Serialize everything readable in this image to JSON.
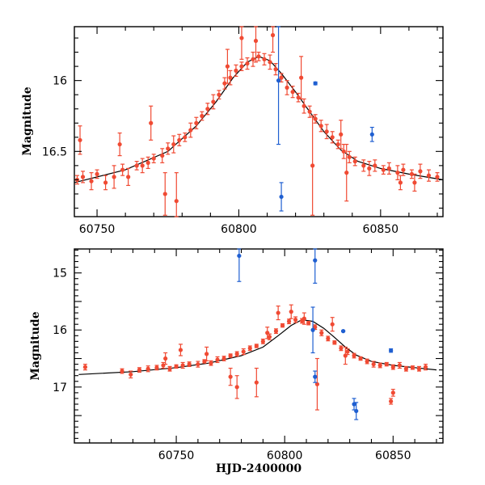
{
  "colors": {
    "red": "#f04a33",
    "blue": "#1f5fd1",
    "model": "#000000"
  },
  "chart_data": [
    {
      "type": "scatter",
      "ylabel": "Magnitude",
      "xlabel": "",
      "xlim": [
        60742,
        60872
      ],
      "ylim": [
        16.96,
        15.62
      ],
      "y_inverted": true,
      "xticks": [
        60750,
        60800,
        60850
      ],
      "xtick_labels": [
        "60750",
        "60800",
        "60850"
      ],
      "yticks": [
        16.0,
        16.5
      ],
      "ytick_labels": [
        "16",
        "16.5"
      ],
      "model_curve": {
        "x": [
          60742,
          60760,
          60775,
          60785,
          60792,
          60798,
          60803,
          60807,
          60811,
          60815,
          60820,
          60825,
          60830,
          60836,
          60842,
          60850,
          60860,
          60872
        ],
        "y": [
          16.72,
          16.63,
          16.5,
          16.32,
          16.15,
          15.98,
          15.87,
          15.83,
          15.86,
          15.95,
          16.08,
          16.22,
          16.36,
          16.49,
          16.57,
          16.62,
          16.66,
          16.7
        ]
      },
      "series": [
        {
          "color": "red",
          "points": [
            [
              60743,
              16.7,
              0.03
            ],
            [
              60745,
              16.68,
              0.04
            ],
            [
              60748,
              16.71,
              0.06
            ],
            [
              60750,
              16.66,
              0.03
            ],
            [
              60753,
              16.72,
              0.05
            ],
            [
              60756,
              16.68,
              0.08
            ],
            [
              60759,
              16.63,
              0.04
            ],
            [
              60761,
              16.68,
              0.06
            ],
            [
              60764,
              16.6,
              0.03
            ],
            [
              60766,
              16.6,
              0.05
            ],
            [
              60768,
              16.58,
              0.04
            ],
            [
              60770,
              16.55,
              0.03
            ],
            [
              60773,
              16.53,
              0.05
            ],
            [
              60775,
              16.48,
              0.04
            ],
            [
              60777,
              16.45,
              0.06
            ],
            [
              60779,
              16.42,
              0.04
            ],
            [
              60781,
              16.4,
              0.03
            ],
            [
              60783,
              16.35,
              0.05
            ],
            [
              60785,
              16.3,
              0.04
            ],
            [
              60787,
              16.25,
              0.03
            ],
            [
              60789,
              16.2,
              0.04
            ],
            [
              60791,
              16.15,
              0.05
            ],
            [
              60793,
              16.1,
              0.03
            ],
            [
              60795,
              16.02,
              0.04
            ],
            [
              60797,
              15.98,
              0.05
            ],
            [
              60799,
              15.93,
              0.04
            ],
            [
              60801,
              15.9,
              0.03
            ],
            [
              60803,
              15.88,
              0.04
            ],
            [
              60805,
              15.85,
              0.05
            ],
            [
              60807,
              15.83,
              0.03
            ],
            [
              60809,
              15.85,
              0.04
            ],
            [
              60811,
              15.87,
              0.05
            ],
            [
              60813,
              15.92,
              0.04
            ],
            [
              60815,
              15.98,
              0.03
            ],
            [
              60817,
              16.05,
              0.05
            ],
            [
              60819,
              16.08,
              0.04
            ],
            [
              60821,
              16.12,
              0.03
            ],
            [
              60823,
              16.18,
              0.05
            ],
            [
              60825,
              16.22,
              0.04
            ],
            [
              60827,
              16.27,
              0.03
            ],
            [
              60829,
              16.32,
              0.04
            ],
            [
              60831,
              16.36,
              0.05
            ],
            [
              60833,
              16.4,
              0.04
            ],
            [
              60835,
              16.45,
              0.03
            ],
            [
              60837,
              16.5,
              0.05
            ],
            [
              60839,
              16.54,
              0.04
            ],
            [
              60841,
              16.57,
              0.03
            ],
            [
              60844,
              16.6,
              0.04
            ],
            [
              60846,
              16.62,
              0.05
            ],
            [
              60848,
              16.6,
              0.04
            ],
            [
              60851,
              16.63,
              0.03
            ],
            [
              60853,
              16.62,
              0.04
            ],
            [
              60856,
              16.65,
              0.05
            ],
            [
              60858,
              16.63,
              0.04
            ],
            [
              60861,
              16.66,
              0.03
            ],
            [
              60864,
              16.64,
              0.05
            ],
            [
              60867,
              16.67,
              0.04
            ],
            [
              60870,
              16.68,
              0.03
            ],
            [
              60744,
              16.42,
              0.1
            ],
            [
              60758,
              16.45,
              0.08
            ],
            [
              60769,
              16.3,
              0.12
            ],
            [
              60774,
              16.8,
              0.15
            ],
            [
              60778,
              16.85,
              0.2
            ],
            [
              60796,
              15.9,
              0.12
            ],
            [
              60801,
              15.7,
              0.15
            ],
            [
              60806,
              15.72,
              0.15
            ],
            [
              60812,
              15.68,
              0.12
            ],
            [
              60822,
              15.98,
              0.15
            ],
            [
              60826,
              16.6,
              0.35
            ],
            [
              60836,
              16.38,
              0.1
            ],
            [
              60838,
              16.65,
              0.2
            ],
            [
              60857,
              16.72,
              0.05
            ],
            [
              60862,
              16.72,
              0.06
            ]
          ]
        },
        {
          "color": "blue",
          "points": [
            [
              60814,
              16.0,
              0.45
            ],
            [
              60815,
              16.82,
              0.1
            ],
            [
              60827,
              16.02,
              0.01
            ],
            [
              60847,
              16.38,
              0.05
            ]
          ]
        }
      ]
    },
    {
      "type": "scatter",
      "ylabel": "Magnitude",
      "xlabel": "HJD-2400000",
      "xlim": [
        60703,
        60873
      ],
      "ylim": [
        17.98,
        14.58
      ],
      "y_inverted": true,
      "xticks": [
        60750,
        60800,
        60850
      ],
      "xtick_labels": [
        "60750",
        "60800",
        "60850"
      ],
      "yticks": [
        15,
        16,
        17
      ],
      "ytick_labels": [
        "15",
        "16",
        "17"
      ],
      "model_curve": {
        "x": [
          60705,
          60730,
          60750,
          60765,
          60780,
          60790,
          60797,
          60803,
          60808,
          60813,
          60818,
          60823,
          60828,
          60833,
          60840,
          60850,
          60860,
          60870
        ],
        "y": [
          16.78,
          16.73,
          16.66,
          16.58,
          16.45,
          16.3,
          16.1,
          15.92,
          15.82,
          15.85,
          15.97,
          16.13,
          16.3,
          16.44,
          16.55,
          16.62,
          16.66,
          16.7
        ]
      },
      "series": [
        {
          "color": "red",
          "points": [
            [
              60708,
              16.65,
              0.05
            ],
            [
              60725,
              16.72,
              0.04
            ],
            [
              60729,
              16.78,
              0.06
            ],
            [
              60733,
              16.7,
              0.04
            ],
            [
              60737,
              16.68,
              0.05
            ],
            [
              60741,
              16.66,
              0.04
            ],
            [
              60744,
              16.62,
              0.05
            ],
            [
              60747,
              16.68,
              0.04
            ],
            [
              60750,
              16.64,
              0.03
            ],
            [
              60753,
              16.62,
              0.05
            ],
            [
              60756,
              16.6,
              0.04
            ],
            [
              60760,
              16.6,
              0.05
            ],
            [
              60763,
              16.55,
              0.03
            ],
            [
              60766,
              16.58,
              0.04
            ],
            [
              60769,
              16.52,
              0.05
            ],
            [
              60772,
              16.5,
              0.04
            ],
            [
              60775,
              16.45,
              0.03
            ],
            [
              60778,
              16.42,
              0.04
            ],
            [
              60781,
              16.38,
              0.05
            ],
            [
              60784,
              16.32,
              0.04
            ],
            [
              60787,
              16.28,
              0.03
            ],
            [
              60790,
              16.2,
              0.04
            ],
            [
              60793,
              16.12,
              0.05
            ],
            [
              60796,
              16.02,
              0.04
            ],
            [
              60799,
              15.92,
              0.03
            ],
            [
              60802,
              15.85,
              0.04
            ],
            [
              60805,
              15.82,
              0.05
            ],
            [
              60808,
              15.84,
              0.04
            ],
            [
              60811,
              15.88,
              0.03
            ],
            [
              60814,
              15.95,
              0.04
            ],
            [
              60817,
              16.05,
              0.05
            ],
            [
              60820,
              16.15,
              0.04
            ],
            [
              60823,
              16.22,
              0.03
            ],
            [
              60826,
              16.32,
              0.04
            ],
            [
              60829,
              16.38,
              0.05
            ],
            [
              60832,
              16.45,
              0.04
            ],
            [
              60835,
              16.5,
              0.03
            ],
            [
              60838,
              16.55,
              0.04
            ],
            [
              60841,
              16.6,
              0.05
            ],
            [
              60844,
              16.62,
              0.04
            ],
            [
              60847,
              16.6,
              0.03
            ],
            [
              60850,
              16.65,
              0.04
            ],
            [
              60853,
              16.62,
              0.05
            ],
            [
              60856,
              16.68,
              0.04
            ],
            [
              60859,
              16.66,
              0.03
            ],
            [
              60862,
              16.68,
              0.04
            ],
            [
              60865,
              16.65,
              0.05
            ],
            [
              60745,
              16.5,
              0.1
            ],
            [
              60752,
              16.35,
              0.1
            ],
            [
              60764,
              16.42,
              0.12
            ],
            [
              60775,
              16.82,
              0.15
            ],
            [
              60778,
              17.0,
              0.2
            ],
            [
              60787,
              16.92,
              0.25
            ],
            [
              60792,
              16.05,
              0.1
            ],
            [
              60797,
              15.7,
              0.12
            ],
            [
              60803,
              15.68,
              0.12
            ],
            [
              60809,
              15.8,
              0.1
            ],
            [
              60815,
              16.95,
              0.45
            ],
            [
              60822,
              15.9,
              0.12
            ],
            [
              60828,
              16.45,
              0.15
            ],
            [
              60849,
              17.25,
              0.05
            ],
            [
              60850,
              17.1,
              0.06
            ]
          ]
        },
        {
          "color": "blue",
          "points": [
            [
              60779,
              14.7,
              0.45
            ],
            [
              60814,
              14.78,
              0.4
            ],
            [
              60813,
              16.0,
              0.4
            ],
            [
              60814,
              16.82,
              0.1
            ],
            [
              60827,
              16.02,
              0.01
            ],
            [
              60832,
              17.3,
              0.1
            ],
            [
              60833,
              17.42,
              0.15
            ],
            [
              60849,
              16.36,
              0.03
            ]
          ]
        }
      ]
    }
  ]
}
